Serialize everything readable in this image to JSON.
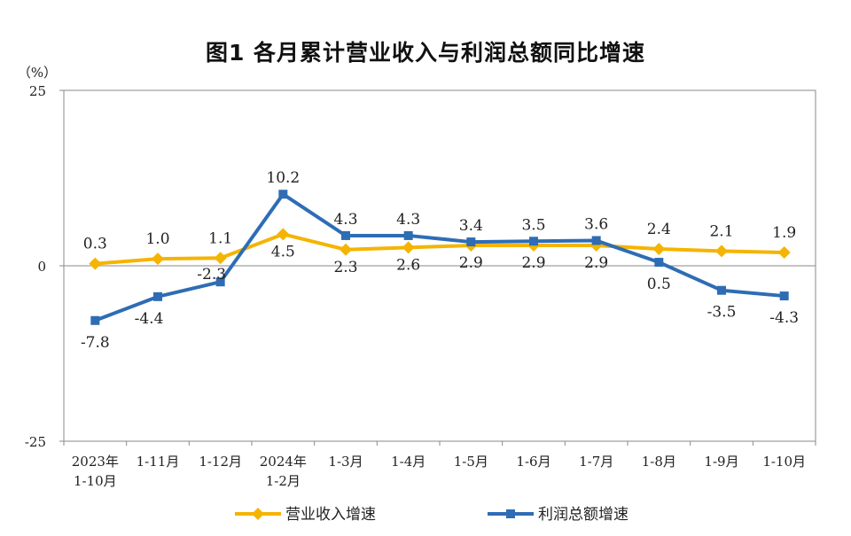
{
  "chart_data": {
    "type": "line",
    "title": "图1  各月累计营业收入与利润总额同比增速",
    "ylabel": "（%）",
    "xlabel": "",
    "ylim": [
      -25,
      25
    ],
    "yticks": [
      "25",
      "0",
      "-25"
    ],
    "categories": [
      [
        "2023年",
        "1-10月"
      ],
      [
        "1-11月"
      ],
      [
        "1-12月"
      ],
      [
        "2024年",
        "1-2月"
      ],
      [
        "1-3月"
      ],
      [
        "1-4月"
      ],
      [
        "1-5月"
      ],
      [
        "1-6月"
      ],
      [
        "1-7月"
      ],
      [
        "1-8月"
      ],
      [
        "1-9月"
      ],
      [
        "1-10月"
      ]
    ],
    "series": [
      {
        "name": "营业收入增速",
        "color": "#F5B400",
        "marker": "diamond",
        "values": [
          0.3,
          1.0,
          1.1,
          4.5,
          2.3,
          2.6,
          2.9,
          2.9,
          2.9,
          2.4,
          2.1,
          1.9
        ],
        "labels": [
          "0.3",
          "1.0",
          "1.1",
          "4.5",
          "2.3",
          "2.6",
          "2.9",
          "2.9",
          "2.9",
          "2.4",
          "2.1",
          "1.9"
        ]
      },
      {
        "name": "利润总额增速",
        "color": "#2E6DB4",
        "marker": "square",
        "values": [
          -7.8,
          -4.4,
          -2.3,
          10.2,
          4.3,
          4.3,
          3.4,
          3.5,
          3.6,
          0.5,
          -3.5,
          -4.3
        ],
        "labels": [
          "-7.8",
          "-4.4",
          "-2.3",
          "10.2",
          "4.3",
          "4.3",
          "3.4",
          "3.5",
          "3.6",
          "0.5",
          "-3.5",
          "-4.3"
        ]
      }
    ],
    "grid": false,
    "legend": "bottom"
  }
}
